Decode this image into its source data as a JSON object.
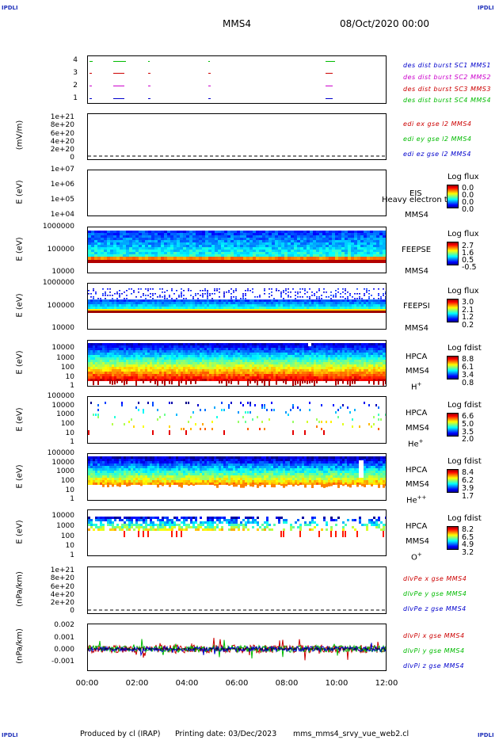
{
  "corners": {
    "tl": "IPDLI",
    "tr": "IPDLI",
    "bl": "IPDLI",
    "br": "IPDLI"
  },
  "header": {
    "spacecraft": "MMS4",
    "date": "08/Oct/2020 00:00"
  },
  "colors": {
    "red": "#cc0000",
    "green": "#00bb00",
    "blue": "#0000cc",
    "magenta": "#cc00cc"
  },
  "chart_data": [
    {
      "type": "scatter",
      "id": "burst",
      "yticks": [
        "1",
        "2",
        "3",
        "4"
      ],
      "legend": [
        "des dist burst SC1 MMS1",
        "des dist burst SC2 MMS2",
        "des dist burst SC3 MMS3",
        "des dist burst SC4 MMS4"
      ]
    },
    {
      "type": "line",
      "id": "edi",
      "ylabel": "(mV/m)",
      "yticks": [
        "0",
        "2e+20",
        "4e+20",
        "6e+20",
        "8e+20",
        "1e+21"
      ],
      "legend": [
        "edi ex gse l2 MMS4",
        "edi ey gse l2 MMS4",
        "edi ez gse l2 MMS4"
      ]
    },
    {
      "type": "heatmap",
      "id": "eis",
      "ylabel": "E (eV)",
      "yticks": [
        "1e+04",
        "1e+05",
        "1e+06",
        "1e+07"
      ],
      "instrument": [
        "EIS",
        "MMS4"
      ],
      "overlay": "Heavy electron to",
      "cbar_title": "Log flux",
      "cbar_ticks": [
        "0.0",
        "0.0",
        "0.0",
        "0.0"
      ]
    },
    {
      "type": "heatmap",
      "id": "feepse",
      "ylabel": "E (eV)",
      "yticks": [
        "10000",
        "100000",
        "1000000"
      ],
      "instrument": [
        "FEEPSE",
        "MMS4"
      ],
      "cbar_title": "Log flux",
      "cbar_ticks": [
        "2.7",
        "1.6",
        "0.5",
        "-0.5"
      ]
    },
    {
      "type": "heatmap",
      "id": "feepsi",
      "ylabel": "E (eV)",
      "yticks": [
        "10000",
        "100000",
        "1000000"
      ],
      "instrument": [
        "FEEPSI",
        "MMS4"
      ],
      "cbar_title": "Log flux",
      "cbar_ticks": [
        "3.0",
        "2.1",
        "1.2",
        "0.2"
      ]
    },
    {
      "type": "heatmap",
      "id": "hpca_h",
      "ylabel": "E (eV)",
      "yticks": [
        "1",
        "10",
        "100",
        "1000",
        "10000"
      ],
      "instrument": [
        "HPCA",
        "MMS4"
      ],
      "species": "H",
      "species_sup": "+",
      "cbar_title": "Log fdist",
      "cbar_ticks": [
        "8.8",
        "6.1",
        "3.4",
        "0.8"
      ]
    },
    {
      "type": "heatmap",
      "id": "hpca_he",
      "ylabel": "E (eV)",
      "yticks": [
        "1",
        "10",
        "100",
        "1000",
        "10000",
        "100000"
      ],
      "instrument": [
        "HPCA",
        "MMS4"
      ],
      "species": "He",
      "species_sup": "+",
      "cbar_title": "Log fdist",
      "cbar_ticks": [
        "6.6",
        "5.0",
        "3.5",
        "2.0"
      ]
    },
    {
      "type": "heatmap",
      "id": "hpca_hepp",
      "ylabel": "E (eV)",
      "yticks": [
        "1",
        "10",
        "100",
        "1000",
        "10000",
        "100000"
      ],
      "instrument": [
        "HPCA",
        "MMS4"
      ],
      "species": "He",
      "species_sup": "++",
      "cbar_title": "Log fdist",
      "cbar_ticks": [
        "8.4",
        "6.2",
        "3.9",
        "1.7"
      ]
    },
    {
      "type": "heatmap",
      "id": "hpca_o",
      "ylabel": "E (eV)",
      "yticks": [
        "1",
        "10",
        "100",
        "1000",
        "10000"
      ],
      "instrument": [
        "HPCA",
        "MMS4"
      ],
      "species": "O",
      "species_sup": "+",
      "cbar_title": "Log fdist",
      "cbar_ticks": [
        "8.2",
        "6.5",
        "4.9",
        "3.2"
      ]
    },
    {
      "type": "line",
      "id": "dpe",
      "ylabel": "(nPa/km)",
      "yticks": [
        "0",
        "2e+20",
        "4e+20",
        "6e+20",
        "8e+20",
        "1e+21"
      ],
      "legend": [
        "dlvPe x gse MMS4",
        "dlvPe y gse MMS4",
        "dlvPe z gse MMS4"
      ]
    },
    {
      "type": "line",
      "id": "dpi",
      "ylabel": "(nPa/km)",
      "yticks": [
        "-0.001",
        "0.000",
        "0.001",
        "0.002"
      ],
      "ylim": [
        -0.0016,
        0.002
      ],
      "legend": [
        "dlvPi x gse MMS4",
        "dlvPi y gse MMS4",
        "dlvPi z gse MMS4"
      ]
    }
  ],
  "xaxis": {
    "ticks": [
      "00:00",
      "02:00",
      "04:00",
      "06:00",
      "08:00",
      "10:00",
      "12:00"
    ]
  },
  "footer": {
    "produced": "Produced by cl (IRAP)",
    "printing": "Printing date: 03/Dec/2023",
    "file": "mms_mms4_srvy_vue_web2.cl"
  }
}
